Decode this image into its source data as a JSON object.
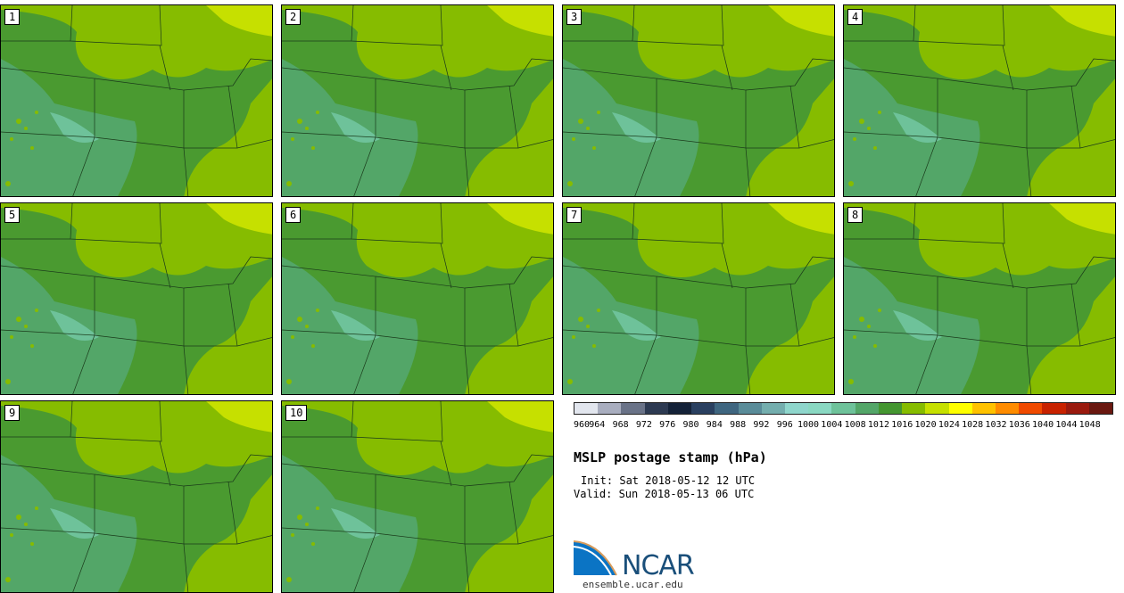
{
  "panels": [
    {
      "label": "1"
    },
    {
      "label": "2"
    },
    {
      "label": "3"
    },
    {
      "label": "4"
    },
    {
      "label": "5"
    },
    {
      "label": "6"
    },
    {
      "label": "7"
    },
    {
      "label": "8"
    },
    {
      "label": "9"
    },
    {
      "label": "10"
    }
  ],
  "colorbar": {
    "ticks": [
      "960",
      "964",
      "968",
      "972",
      "976",
      "980",
      "984",
      "988",
      "992",
      "996",
      "1000",
      "1004",
      "1008",
      "1012",
      "1016",
      "1020",
      "1024",
      "1028",
      "1032",
      "1036",
      "1040",
      "1044",
      "1048"
    ],
    "colors": [
      "#e2e6ee",
      "#a9aebf",
      "#6a7388",
      "#2d3a52",
      "#142238",
      "#2a4060",
      "#3f6680",
      "#5a8c99",
      "#74aeae",
      "#8fd6cc",
      "#8ad8c2",
      "#6ec29a",
      "#53a668",
      "#449630",
      "#86bc00",
      "#c6e000",
      "#ffff00",
      "#ffc200",
      "#ff8c00",
      "#f04a00",
      "#c82200",
      "#9a1a0e",
      "#6a1810"
    ]
  },
  "title": "MSLP postage stamp (hPa)",
  "init": "Init: Sat 2018-05-12 12 UTC",
  "valid": "Valid: Sun 2018-05-13 06 UTC",
  "logo": {
    "text": "NCAR",
    "url": "ensemble.ucar.edu"
  }
}
